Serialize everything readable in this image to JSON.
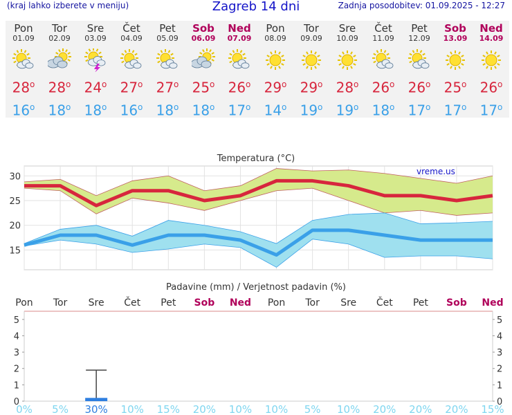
{
  "header": {
    "left_note": "(kraj lahko izberete v meniju)",
    "title": "Zagreb 14 dni",
    "updated": "Zadnja posodobitev: 01.09.2025 - 12:27"
  },
  "colors": {
    "max_line": "#d7263d",
    "min_line": "#3aa0e8",
    "max_band": "#d6ea8c",
    "min_band": "#9fe0ef",
    "weekend": "#b0005a",
    "precip_bar": "#2f7fe0",
    "prob_text": "#7fd6f0"
  },
  "days": [
    {
      "name": "Pon",
      "date": "01.09",
      "icon": "partly-cloudy-icon",
      "max": "28",
      "min": "16",
      "weekend": false
    },
    {
      "name": "Tor",
      "date": "02.09",
      "icon": "cloudy-sun-icon",
      "max": "28",
      "min": "18",
      "weekend": false
    },
    {
      "name": "Sre",
      "date": "03.09",
      "icon": "thunderstorm-icon",
      "max": "24",
      "min": "18",
      "weekend": false
    },
    {
      "name": "Čet",
      "date": "04.09",
      "icon": "partly-cloudy-icon",
      "max": "27",
      "min": "16",
      "weekend": false
    },
    {
      "name": "Pet",
      "date": "05.09",
      "icon": "partly-cloudy-icon",
      "max": "27",
      "min": "18",
      "weekend": false
    },
    {
      "name": "Sob",
      "date": "06.09",
      "icon": "cloudy-sun-icon",
      "max": "25",
      "min": "18",
      "weekend": true
    },
    {
      "name": "Ned",
      "date": "07.09",
      "icon": "partly-cloudy-icon",
      "max": "26",
      "min": "17",
      "weekend": true
    },
    {
      "name": "Pon",
      "date": "08.09",
      "icon": "sunny-icon",
      "max": "29",
      "min": "14",
      "weekend": false
    },
    {
      "name": "Tor",
      "date": "09.09",
      "icon": "sunny-icon",
      "max": "29",
      "min": "19",
      "weekend": false
    },
    {
      "name": "Sre",
      "date": "10.09",
      "icon": "sunny-icon",
      "max": "28",
      "min": "19",
      "weekend": false
    },
    {
      "name": "Čet",
      "date": "11.09",
      "icon": "partly-cloudy-icon",
      "max": "26",
      "min": "18",
      "weekend": false
    },
    {
      "name": "Pet",
      "date": "12.09",
      "icon": "partly-cloudy-icon",
      "max": "26",
      "min": "17",
      "weekend": false
    },
    {
      "name": "Sob",
      "date": "13.09",
      "icon": "sunny-icon",
      "max": "25",
      "min": "17",
      "weekend": true
    },
    {
      "name": "Ned",
      "date": "14.09",
      "icon": "sunny-icon",
      "max": "26",
      "min": "17",
      "weekend": true
    }
  ],
  "chart_data": [
    {
      "type": "line",
      "title": "Temperatura (°C)",
      "watermark": "vreme.us",
      "categories": [
        "Pon",
        "Tor",
        "Sre",
        "Čet",
        "Pet",
        "Sob",
        "Ned",
        "Pon",
        "Tor",
        "Sre",
        "Čet",
        "Pet",
        "Sob",
        "Ned"
      ],
      "ylim": [
        11,
        32
      ],
      "yticks": [
        15,
        20,
        25,
        30
      ],
      "grid": true,
      "series": [
        {
          "role": "max",
          "values": [
            28,
            28,
            24,
            27,
            27,
            25,
            26,
            29,
            29,
            28,
            26,
            26,
            25,
            26
          ],
          "band_low": [
            27.5,
            27,
            22.3,
            25.5,
            24.5,
            23,
            25,
            27,
            27.5,
            25,
            22.5,
            23,
            22,
            22.5
          ],
          "band_high": [
            28.8,
            29.3,
            26,
            29,
            30,
            27,
            28,
            31.5,
            31,
            31.2,
            30.5,
            29.5,
            28.5,
            30
          ]
        },
        {
          "role": "min",
          "values": [
            16,
            18,
            18,
            16,
            18,
            18,
            17,
            14,
            19,
            19,
            18,
            17,
            17,
            17
          ],
          "band_low": [
            15.8,
            17,
            16.2,
            14.5,
            15.2,
            16.2,
            15.5,
            11.5,
            17.2,
            16.2,
            13.5,
            13.8,
            13.8,
            13.2
          ],
          "band_high": [
            16.3,
            19.2,
            20,
            17.8,
            21,
            20,
            18.7,
            16.3,
            21,
            22.2,
            22.5,
            20.3,
            20.5,
            20.8
          ]
        }
      ]
    },
    {
      "type": "bar",
      "title": "Padavine (mm) / Verjetnost padavin (%)",
      "categories": [
        "Pon",
        "Tor",
        "Sre",
        "Čet",
        "Pet",
        "Sob",
        "Ned",
        "Pon",
        "Tor",
        "Sre",
        "Čet",
        "Pet",
        "Sob",
        "Ned"
      ],
      "weekend": [
        false,
        false,
        false,
        false,
        false,
        true,
        true,
        false,
        false,
        false,
        false,
        false,
        true,
        true
      ],
      "ylim": [
        0,
        5.5
      ],
      "yticks": [
        0,
        1,
        2,
        3,
        4,
        5
      ],
      "values": [
        0,
        0,
        0.2,
        0,
        0,
        0,
        0,
        0,
        0,
        0,
        0,
        0,
        0,
        0
      ],
      "range_high": [
        0,
        0,
        1.9,
        0,
        0,
        0,
        0,
        0,
        0,
        0,
        0,
        0,
        0,
        0
      ],
      "probability": [
        "0%",
        "5%",
        "30%",
        "10%",
        "15%",
        "20%",
        "10%",
        "10%",
        "5%",
        "10%",
        "20%",
        "20%",
        "20%",
        "15%"
      ]
    }
  ]
}
